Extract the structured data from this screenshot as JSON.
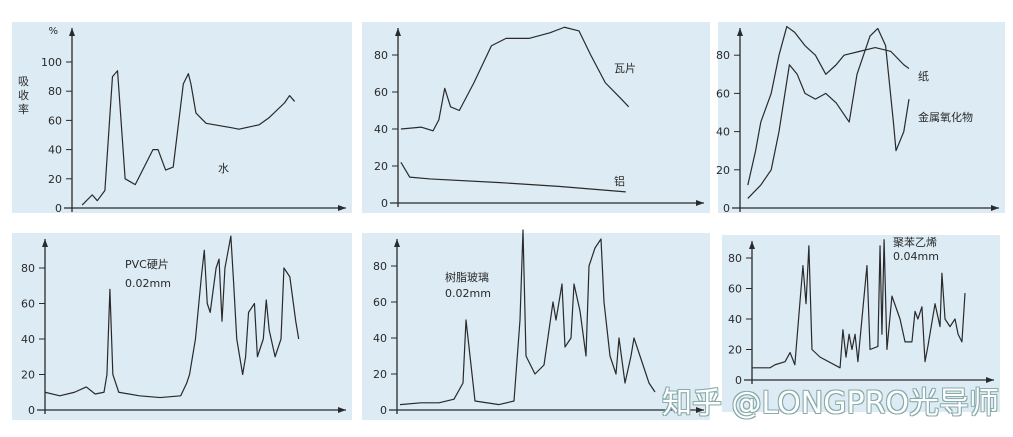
{
  "chart_data": [
    {
      "type": "line",
      "ylabel": "吸收率",
      "yunit": "%",
      "yticks": [
        0,
        20,
        40,
        60,
        80,
        100
      ],
      "ylim": [
        0,
        100
      ],
      "xlim": [
        0,
        100
      ],
      "series": [
        {
          "name": "水",
          "points": [
            [
              4,
              2
            ],
            [
              8,
              9
            ],
            [
              10,
              5
            ],
            [
              13,
              12
            ],
            [
              16,
              90
            ],
            [
              18,
              94
            ],
            [
              21,
              20
            ],
            [
              25,
              16
            ],
            [
              32,
              40
            ],
            [
              34,
              40
            ],
            [
              37,
              26
            ],
            [
              40,
              28
            ],
            [
              44,
              85
            ],
            [
              46,
              92
            ],
            [
              47,
              85
            ],
            [
              49,
              65
            ],
            [
              53,
              58
            ],
            [
              63,
              55
            ],
            [
              66,
              54
            ],
            [
              74,
              57
            ],
            [
              78,
              62
            ],
            [
              84,
              72
            ],
            [
              86,
              77
            ],
            [
              88,
              73
            ]
          ]
        }
      ]
    },
    {
      "type": "line",
      "yticks": [
        0,
        20,
        40,
        60,
        80
      ],
      "ylim": [
        0,
        95
      ],
      "xlim": [
        0,
        100
      ],
      "series": [
        {
          "name": "瓦片",
          "points": [
            [
              1,
              40
            ],
            [
              8,
              41
            ],
            [
              12,
              39
            ],
            [
              14,
              45
            ],
            [
              16,
              62
            ],
            [
              18,
              52
            ],
            [
              21,
              50
            ],
            [
              26,
              65
            ],
            [
              32,
              85
            ],
            [
              37,
              89
            ],
            [
              45,
              89
            ],
            [
              52,
              92
            ],
            [
              57,
              95
            ],
            [
              62,
              93
            ],
            [
              66,
              80
            ],
            [
              71,
              65
            ],
            [
              76,
              57
            ],
            [
              79,
              52
            ]
          ]
        },
        {
          "name": "铝",
          "points": [
            [
              1,
              22
            ],
            [
              4,
              14
            ],
            [
              11,
              13
            ],
            [
              35,
              11
            ],
            [
              55,
              9
            ],
            [
              78,
              6
            ]
          ]
        }
      ]
    },
    {
      "type": "line",
      "yticks": [
        0,
        20,
        40,
        60,
        80
      ],
      "ylim": [
        0,
        95
      ],
      "xlim": [
        0,
        100
      ],
      "series": [
        {
          "name": "纸",
          "points": [
            [
              3,
              12
            ],
            [
              6,
              30
            ],
            [
              8,
              45
            ],
            [
              12,
              60
            ],
            [
              15,
              80
            ],
            [
              18,
              95
            ],
            [
              21,
              92
            ],
            [
              25,
              85
            ],
            [
              29,
              80
            ],
            [
              33,
              70
            ],
            [
              37,
              75
            ],
            [
              40,
              80
            ],
            [
              46,
              82
            ],
            [
              52,
              84
            ],
            [
              58,
              82
            ],
            [
              63,
              75
            ],
            [
              65,
              73
            ]
          ]
        },
        {
          "name": "金属氧化物",
          "points": [
            [
              3,
              5
            ],
            [
              8,
              12
            ],
            [
              12,
              20
            ],
            [
              15,
              40
            ],
            [
              19,
              75
            ],
            [
              22,
              70
            ],
            [
              25,
              60
            ],
            [
              29,
              57
            ],
            [
              33,
              60
            ],
            [
              37,
              55
            ],
            [
              42,
              45
            ],
            [
              45,
              70
            ],
            [
              50,
              90
            ],
            [
              53,
              94
            ],
            [
              56,
              85
            ],
            [
              59,
              45
            ],
            [
              60,
              30
            ],
            [
              63,
              40
            ],
            [
              65,
              57
            ]
          ]
        }
      ]
    },
    {
      "type": "line",
      "yticks": [
        0,
        20,
        40,
        60,
        80
      ],
      "ylim": [
        0,
        95
      ],
      "xlim": [
        0,
        100
      ],
      "annotation": "0.02mm",
      "series": [
        {
          "name": "PVC硬片",
          "points": [
            [
              0,
              10
            ],
            [
              5,
              8
            ],
            [
              10,
              10
            ],
            [
              14,
              13
            ],
            [
              17,
              9
            ],
            [
              20,
              10
            ],
            [
              21,
              20
            ],
            [
              22,
              68
            ],
            [
              23,
              20
            ],
            [
              25,
              10
            ],
            [
              32,
              8
            ],
            [
              39,
              7
            ],
            [
              46,
              8
            ],
            [
              48,
              15
            ],
            [
              49,
              20
            ],
            [
              51,
              40
            ],
            [
              53,
              75
            ],
            [
              54,
              90
            ],
            [
              55,
              60
            ],
            [
              56,
              55
            ],
            [
              58,
              80
            ],
            [
              59,
              85
            ],
            [
              60,
              50
            ],
            [
              61,
              80
            ],
            [
              63,
              98
            ],
            [
              64,
              70
            ],
            [
              65,
              40
            ],
            [
              67,
              20
            ],
            [
              68,
              30
            ],
            [
              69,
              55
            ],
            [
              71,
              60
            ],
            [
              72,
              30
            ],
            [
              74,
              40
            ],
            [
              75,
              62
            ],
            [
              76,
              45
            ],
            [
              78,
              30
            ],
            [
              80,
              40
            ],
            [
              81,
              80
            ],
            [
              83,
              75
            ],
            [
              85,
              50
            ],
            [
              86,
              40
            ]
          ]
        }
      ]
    },
    {
      "type": "line",
      "yticks": [
        0,
        20,
        40,
        60,
        80
      ],
      "ylim": [
        0,
        95
      ],
      "xlim": [
        0,
        100
      ],
      "annotation": "0.02mm",
      "series": [
        {
          "name": "树脂玻璃",
          "points": [
            [
              1,
              3
            ],
            [
              8,
              4
            ],
            [
              14,
              4
            ],
            [
              19,
              6
            ],
            [
              22,
              15
            ],
            [
              23,
              50
            ],
            [
              25,
              20
            ],
            [
              26,
              5
            ],
            [
              34,
              3
            ],
            [
              39,
              5
            ],
            [
              41,
              50
            ],
            [
              42,
              100
            ],
            [
              43,
              30
            ],
            [
              46,
              20
            ],
            [
              49,
              25
            ],
            [
              52,
              60
            ],
            [
              53,
              50
            ],
            [
              55,
              70
            ],
            [
              56,
              35
            ],
            [
              58,
              40
            ],
            [
              59,
              70
            ],
            [
              61,
              55
            ],
            [
              63,
              30
            ],
            [
              64,
              80
            ],
            [
              66,
              90
            ],
            [
              68,
              95
            ],
            [
              69,
              60
            ],
            [
              71,
              30
            ],
            [
              73,
              20
            ],
            [
              74,
              40
            ],
            [
              76,
              15
            ],
            [
              78,
              30
            ],
            [
              79,
              40
            ],
            [
              81,
              30
            ],
            [
              83,
              20
            ],
            [
              84,
              15
            ],
            [
              86,
              10
            ]
          ]
        }
      ]
    },
    {
      "type": "line",
      "yticks": [
        0,
        20,
        40,
        60,
        80
      ],
      "ylim": [
        0,
        95
      ],
      "xlim": [
        0,
        100
      ],
      "annotation": "0.04mm",
      "series": [
        {
          "name": "聚苯乙烯",
          "points": [
            [
              0,
              8
            ],
            [
              7.6,
              8
            ],
            [
              9.7,
              10
            ],
            [
              13.9,
              12
            ],
            [
              16,
              18
            ],
            [
              18,
              10
            ],
            [
              21.4,
              75
            ],
            [
              22.7,
              50
            ],
            [
              23.9,
              88
            ],
            [
              25.2,
              20
            ],
            [
              28.6,
              15
            ],
            [
              37,
              8
            ],
            [
              38.2,
              33
            ],
            [
              39.5,
              15
            ],
            [
              40.8,
              30
            ],
            [
              42,
              20
            ],
            [
              43.3,
              30
            ],
            [
              44.5,
              12
            ],
            [
              48.3,
              75
            ],
            [
              49.6,
              20
            ],
            [
              52.9,
              22
            ],
            [
              53.8,
              88
            ],
            [
              54.6,
              30
            ],
            [
              55.5,
              92
            ],
            [
              56.7,
              20
            ],
            [
              58.8,
              55
            ],
            [
              62.2,
              40
            ],
            [
              64.3,
              25
            ],
            [
              67.2,
              25
            ],
            [
              68.5,
              45
            ],
            [
              69.7,
              40
            ],
            [
              71.4,
              48
            ],
            [
              72.7,
              12
            ],
            [
              73.9,
              22
            ],
            [
              76.9,
              50
            ],
            [
              79,
              35
            ],
            [
              79.8,
              70
            ],
            [
              81.1,
              40
            ],
            [
              83.2,
              35
            ],
            [
              85.3,
              40
            ],
            [
              86.6,
              30
            ],
            [
              88.2,
              25
            ],
            [
              89.5,
              57
            ]
          ]
        }
      ]
    }
  ],
  "watermark": "知乎 @LONGPRO光导师",
  "colors": {
    "panel": "#dcebf4",
    "ink": "#2a2a2a"
  }
}
